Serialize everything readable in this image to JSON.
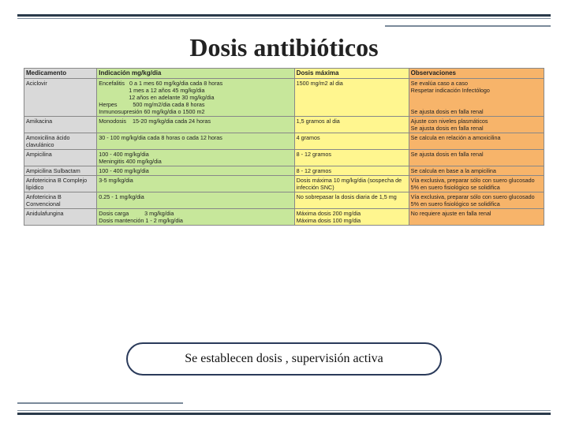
{
  "title": "Dosis antibióticos",
  "callout": "Se establecen dosis , supervisión activa",
  "colors": {
    "header_med": "#d9d9d9",
    "header_ind": "#c7e79b",
    "header_dose": "#fff68f",
    "header_obs": "#f7b46a",
    "top_rule": "#2a3a4a"
  },
  "headers": {
    "med": "Medicamento",
    "ind": "Indicación mg/kg/dia",
    "dose": "Dosis máxima",
    "obs": "Observaciones"
  },
  "rows": [
    {
      "med": "Aciclovir",
      "ind": "Encefalitis   0 a 1 mes 60 mg/kg/dia cada 8 horas\n                   1 mes a 12 años 45 mg/kg/dia\n                   12 años en adelante 30 mg/kg/dia\nHerpes          500 mg/m2/dia cada 8 horas\nInmunosupresión 60 mg/kg/dia o 1500 m2",
      "dose": "1500 mg/m2 al dia",
      "obs": "Se evalúa caso a caso\nRespetar indicación Infectólogo\n\n\nSe ajusta dosis en falla renal"
    },
    {
      "med": "Amikacina",
      "ind": "Monodosis    15-20 mg/kg/dia cada 24 horas",
      "dose": "1,5 gramos al dia",
      "obs": "Ajuste con niveles plasmáticos\nSe ajusta dosis en falla renal"
    },
    {
      "med": "Amoxicilina ácido clavulánico",
      "ind": "30 - 100 mg/kg/dia cada 8 horas o cada 12 horas",
      "dose": "4 gramos",
      "obs": "Se calcula en relación a amoxicilina"
    },
    {
      "med": "Ampicilina",
      "ind": "100 - 400 mg/kg/dia\nMeningitis 400 mg/kg/dia",
      "dose": "8 - 12 gramos",
      "obs": "Se ajusta dosis en falla renal"
    },
    {
      "med": "Ampicilina Sulbactam",
      "ind": "100 - 400 mg/kg/dia",
      "dose": "8 - 12 gramos",
      "obs": "Se calcula en base a la ampicilina"
    },
    {
      "med": "Anfotericina B Complejo lipídico",
      "ind": "3-5 mg/kg/dia",
      "dose": "Dosis máxima 10 mg/kg/dia (sospecha de infección SNC)",
      "obs": "Vía exclusiva, preparar sólo con suero glucosado 5% en suero fisiológico se solidifica"
    },
    {
      "med": "Anfotericina B Convencional",
      "ind": "0.25 - 1 mg/kg/dia",
      "dose": "No sobrepasar la dosis diaria de 1,5 mg",
      "obs": "Vía exclusiva, preparar sólo con suero glucosado 5% en suero fisiológico se solidifica"
    },
    {
      "med": "Anidulafungina",
      "ind": "Dosis carga          3 mg/kg/dia\nDosis mantención 1 - 2 mg/kg/dia",
      "dose": "Máxima dosis 200 mg/dia\nMáxima dosis 100 mg/dia",
      "obs": "No requiere ajuste en falla renal"
    }
  ]
}
